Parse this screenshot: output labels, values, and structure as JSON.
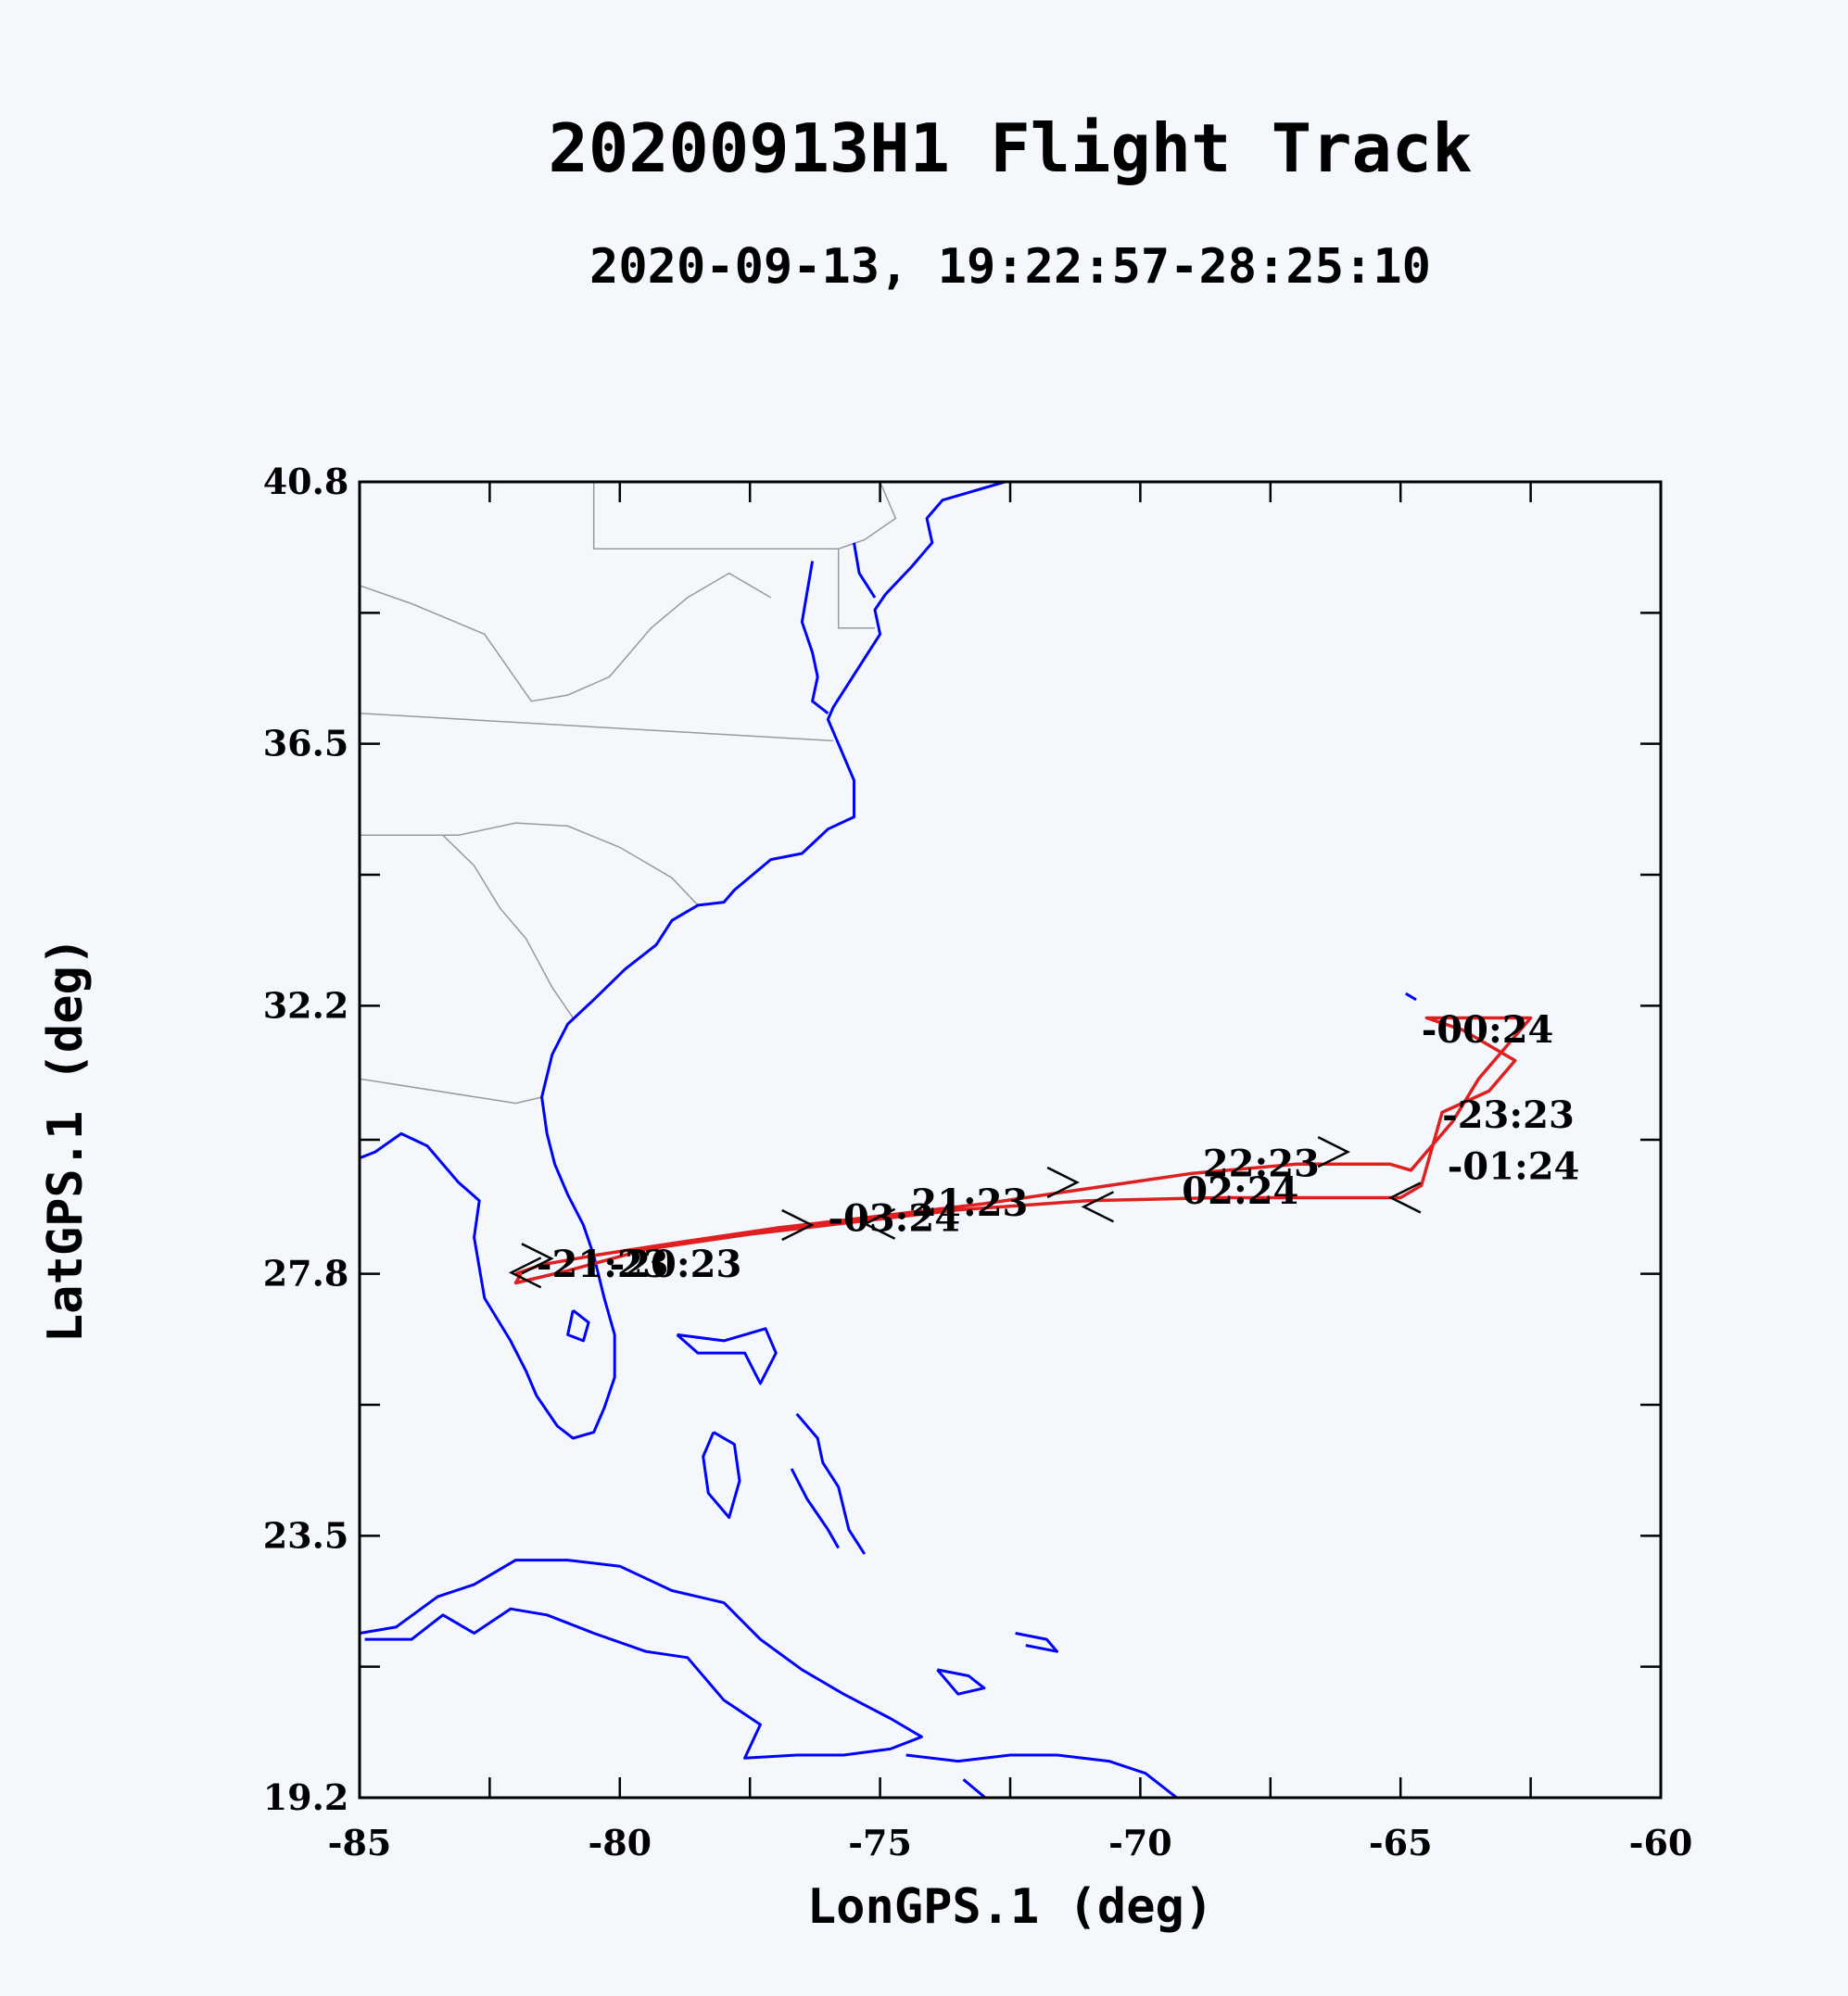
{
  "title": "20200913H1 Flight Track",
  "subtitle": "2020-09-13, 19:22:57-28:25:10",
  "chart_data": {
    "type": "line",
    "xlabel": "LonGPS.1 (deg)",
    "ylabel": "LatGPS.1 (deg)",
    "xlim": [
      -85,
      -60
    ],
    "ylim": [
      19.2,
      40.8
    ],
    "x_ticks": [
      -85,
      -80,
      -75,
      -70,
      -65,
      -60
    ],
    "y_ticks": [
      19.2,
      23.5,
      27.8,
      32.2,
      36.5,
      40.8
    ],
    "colors": {
      "track": "#e02020",
      "coastline": "#0000ff",
      "borders": "#999999",
      "axes": "#000000"
    },
    "track": {
      "x": [
        -82.0,
        -81.5,
        -80.5,
        -79.0,
        -77.0,
        -75.0,
        -73.0,
        -71.0,
        -69.0,
        -67.0,
        -65.2,
        -64.8,
        -64.0,
        -63.5,
        -62.5,
        -64.5,
        -63.8,
        -62.8,
        -63.3,
        -64.2,
        -64.6,
        -65.0,
        -66.5,
        -68.5,
        -71.0,
        -73.5,
        -75.5,
        -77.5,
        -79.5,
        -81.0,
        -82.0,
        -81.9
      ],
      "y": [
        27.8,
        27.95,
        28.1,
        28.3,
        28.55,
        28.75,
        28.95,
        29.2,
        29.45,
        29.6,
        29.6,
        29.5,
        30.3,
        31.0,
        32.0,
        32.0,
        31.8,
        31.3,
        30.8,
        30.45,
        29.25,
        29.05,
        29.05,
        29.05,
        29.0,
        28.85,
        28.65,
        28.45,
        28.2,
        27.85,
        27.65,
        27.8
      ]
    },
    "time_labels": [
      {
        "text": "-00:24",
        "x": -64.6,
        "y": 31.6
      },
      {
        "text": "-23:23",
        "x": -64.2,
        "y": 30.2
      },
      {
        "text": "-01:24",
        "x": -64.1,
        "y": 29.35
      },
      {
        "text": "22:23",
        "x": -68.8,
        "y": 29.4
      },
      {
        "text": "02:24",
        "x": -69.2,
        "y": 28.95
      },
      {
        "text": "21:23",
        "x": -74.4,
        "y": 28.75
      },
      {
        "text": "-03:24",
        "x": -76.0,
        "y": 28.5
      },
      {
        "text": "-20:23",
        "x": -80.2,
        "y": 27.75
      },
      {
        "text": "-21:23",
        "x": -81.6,
        "y": 27.75
      }
    ],
    "direction_arrows": [
      {
        "x": -66.3,
        "y": 29.8,
        "dir": "right"
      },
      {
        "x": -71.5,
        "y": 29.3,
        "dir": "right"
      },
      {
        "x": -76.6,
        "y": 28.6,
        "dir": "right"
      },
      {
        "x": -81.6,
        "y": 28.05,
        "dir": "right"
      },
      {
        "x": -64.9,
        "y": 29.05,
        "dir": "left"
      },
      {
        "x": -70.8,
        "y": 28.9,
        "dir": "left"
      },
      {
        "x": -75.0,
        "y": 28.62,
        "dir": "left"
      },
      {
        "x": -81.8,
        "y": 27.82,
        "dir": "left"
      }
    ]
  }
}
